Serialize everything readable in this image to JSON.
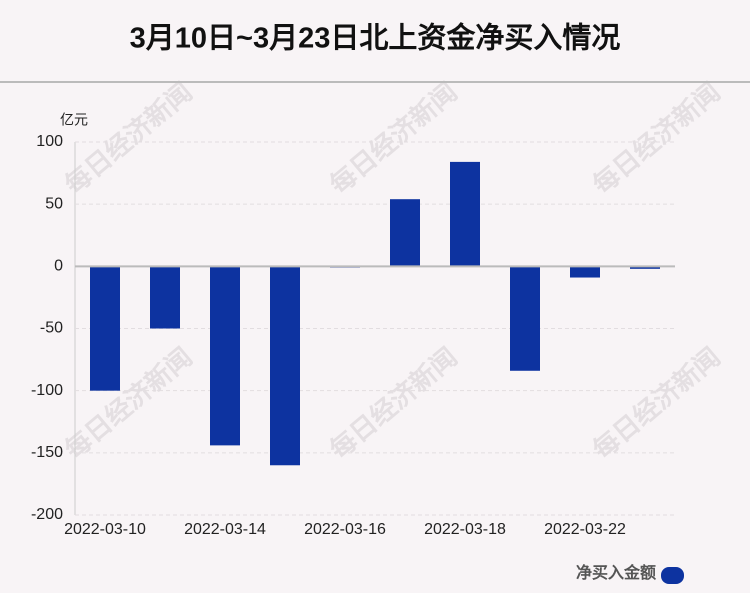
{
  "chart_data": {
    "type": "bar",
    "title": "3月10日~3月23日北上资金净买入情况",
    "y_unit": "亿元",
    "watermark": "每日经济新闻",
    "categories": [
      "2022-03-10",
      null,
      "2022-03-14",
      null,
      "2022-03-16",
      null,
      "2022-03-18",
      null,
      "2022-03-22",
      null
    ],
    "series": [
      {
        "name": "净买入金额",
        "color": "#0d33a0",
        "values": [
          -100,
          -50,
          -144,
          -160,
          -1,
          54,
          84,
          -84,
          -9,
          -2
        ]
      }
    ],
    "ylim": [
      -200,
      100
    ],
    "yticks": [
      -200,
      -150,
      -100,
      -50,
      0,
      50,
      100
    ],
    "grid": true
  }
}
